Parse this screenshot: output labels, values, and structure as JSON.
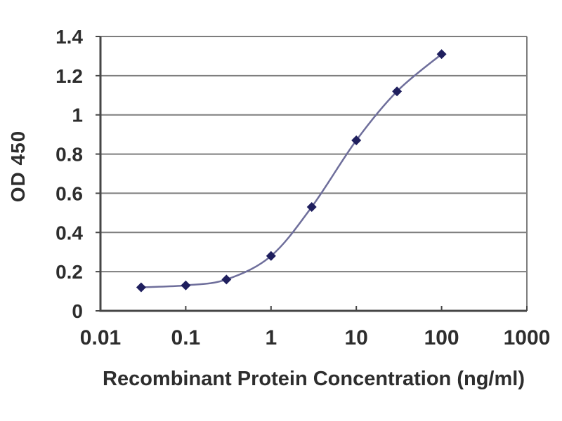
{
  "chart_data": {
    "type": "line",
    "title": "",
    "xlabel": "Recombinant Protein Concentration (ng/ml)",
    "ylabel": "OD 450",
    "x_scale": "log",
    "x": [
      0.03,
      0.1,
      0.3,
      1,
      3,
      10,
      30,
      100
    ],
    "y": [
      0.12,
      0.13,
      0.16,
      0.28,
      0.53,
      0.87,
      1.12,
      1.31
    ],
    "x_tick_labels": [
      "0.01",
      "0.1",
      "1",
      "10",
      "100",
      "1000"
    ],
    "x_tick_values": [
      0.01,
      0.1,
      1,
      10,
      100,
      1000
    ],
    "y_tick_labels": [
      "0",
      "0.2",
      "0.4",
      "0.6",
      "0.8",
      "1",
      "1.2",
      "1.4"
    ],
    "y_tick_values": [
      0,
      0.2,
      0.4,
      0.6,
      0.8,
      1,
      1.2,
      1.4
    ],
    "xlim": [
      0.01,
      1000
    ],
    "ylim": [
      0,
      1.4
    ],
    "grid": "horizontal",
    "legend": "none",
    "marker_shape": "diamond",
    "colors": {
      "line": "#6e6e9b",
      "marker": "#1f1f5e",
      "gridline": "#7d7d7d",
      "axis": "#464646",
      "text": "#2d2d2d",
      "background": "#ffffff"
    }
  }
}
